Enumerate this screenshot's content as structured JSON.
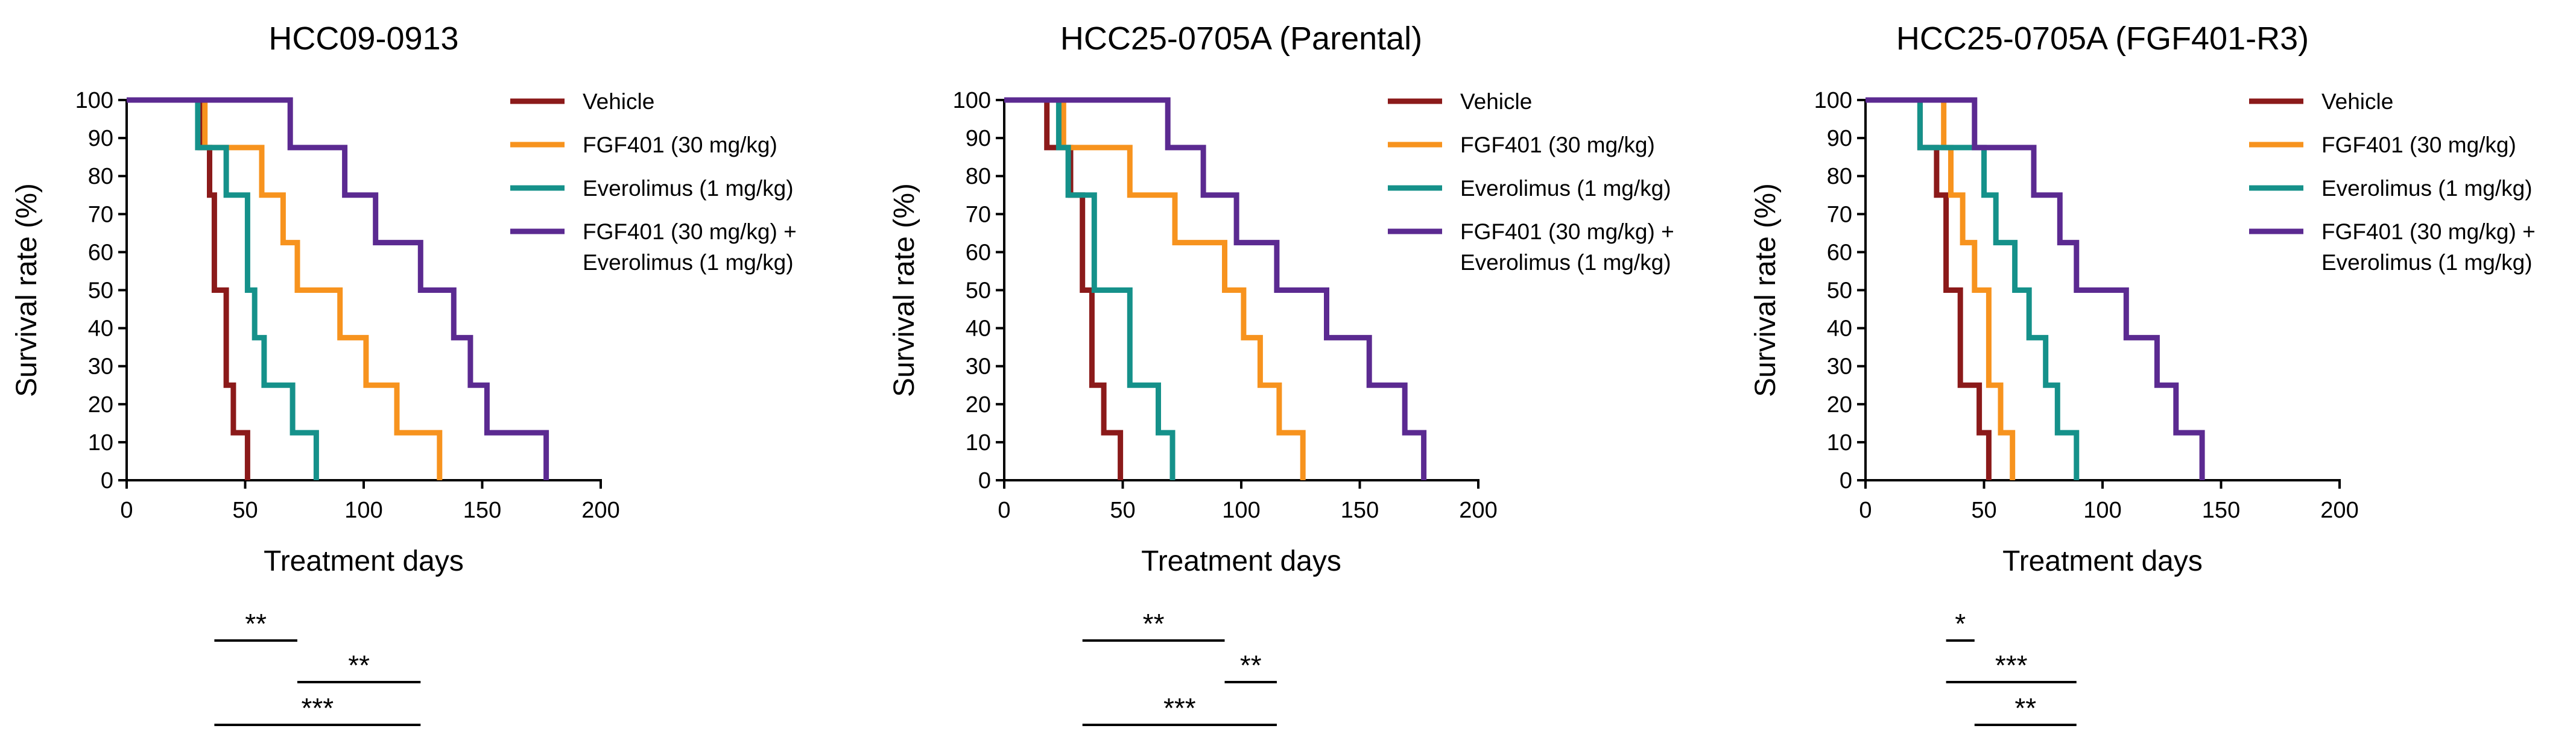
{
  "chart_data": [
    {
      "type": "line",
      "step": true,
      "title": "HCC09-0913",
      "xlabel": "Treatment days",
      "ylabel": "Survival rate (%)",
      "xlim": [
        0,
        200
      ],
      "ylim": [
        0,
        100
      ],
      "xticks": [
        "0",
        "50",
        "100",
        "150",
        "200"
      ],
      "yticks": [
        "0",
        "10",
        "20",
        "30",
        "40",
        "50",
        "60",
        "70",
        "80",
        "90",
        "100"
      ],
      "legend": [
        "Vehicle",
        "FGF401 (30 mg/kg)",
        "Everolimus (1 mg/kg)",
        "FGF401 (30 mg/kg) +\nEverolimus (1 mg/kg)"
      ],
      "series": [
        {
          "name": "Vehicle",
          "color": "#8b1a1a",
          "points": [
            [
              0,
              100
            ],
            [
              31,
              100
            ],
            [
              31,
              87.5
            ],
            [
              35,
              87.5
            ],
            [
              35,
              75
            ],
            [
              37,
              75
            ],
            [
              37,
              50
            ],
            [
              42,
              50
            ],
            [
              42,
              25
            ],
            [
              45,
              25
            ],
            [
              45,
              12.5
            ],
            [
              51,
              12.5
            ],
            [
              51,
              0
            ]
          ]
        },
        {
          "name": "FGF401 (30 mg/kg)",
          "color": "#f7931e",
          "points": [
            [
              0,
              100
            ],
            [
              33,
              100
            ],
            [
              33,
              87.5
            ],
            [
              57,
              87.5
            ],
            [
              57,
              75
            ],
            [
              66,
              75
            ],
            [
              66,
              62.5
            ],
            [
              72,
              62.5
            ],
            [
              72,
              50
            ],
            [
              90,
              50
            ],
            [
              90,
              37.5
            ],
            [
              101,
              37.5
            ],
            [
              101,
              25
            ],
            [
              114,
              25
            ],
            [
              114,
              12.5
            ],
            [
              132,
              12.5
            ],
            [
              132,
              0
            ]
          ]
        },
        {
          "name": "Everolimus (1 mg/kg)",
          "color": "#15918a",
          "points": [
            [
              0,
              100
            ],
            [
              30,
              100
            ],
            [
              30,
              87.5
            ],
            [
              42,
              87.5
            ],
            [
              42,
              75
            ],
            [
              51,
              75
            ],
            [
              51,
              50
            ],
            [
              54,
              50
            ],
            [
              54,
              37.5
            ],
            [
              58,
              37.5
            ],
            [
              58,
              25
            ],
            [
              70,
              25
            ],
            [
              70,
              12.5
            ],
            [
              80,
              12.5
            ],
            [
              80,
              0
            ]
          ]
        },
        {
          "name": "FGF401 (30 mg/kg) + Everolimus (1 mg/kg)",
          "color": "#5b2a91",
          "points": [
            [
              0,
              100
            ],
            [
              69,
              100
            ],
            [
              69,
              87.5
            ],
            [
              92,
              87.5
            ],
            [
              92,
              75
            ],
            [
              105,
              75
            ],
            [
              105,
              62.5
            ],
            [
              124,
              62.5
            ],
            [
              124,
              50
            ],
            [
              138,
              50
            ],
            [
              138,
              37.5
            ],
            [
              145,
              37.5
            ],
            [
              145,
              25
            ],
            [
              152,
              25
            ],
            [
              152,
              12.5
            ],
            [
              177,
              12.5
            ],
            [
              177,
              0
            ]
          ]
        }
      ],
      "significance": [
        {
          "label": "**",
          "from": "Vehicle",
          "to": "FGF401 (30 mg/kg)"
        },
        {
          "label": "**",
          "from": "FGF401 (30 mg/kg)",
          "to": "FGF401 (30 mg/kg) + Everolimus (1 mg/kg)"
        },
        {
          "label": "***",
          "from": "Vehicle",
          "to": "FGF401 (30 mg/kg) + Everolimus (1 mg/kg)"
        }
      ]
    },
    {
      "type": "line",
      "step": true,
      "title": "HCC25-0705A (Parental)",
      "xlabel": "Treatment days",
      "ylabel": "Survival rate (%)",
      "xlim": [
        0,
        200
      ],
      "ylim": [
        0,
        100
      ],
      "xticks": [
        "0",
        "50",
        "100",
        "150",
        "200"
      ],
      "yticks": [
        "0",
        "10",
        "20",
        "30",
        "40",
        "50",
        "60",
        "70",
        "80",
        "90",
        "100"
      ],
      "legend": [
        "Vehicle",
        "FGF401 (30 mg/kg)",
        "Everolimus (1 mg/kg)",
        "FGF401 (30 mg/kg) +\nEverolimus (1 mg/kg)"
      ],
      "series": [
        {
          "name": "Vehicle",
          "color": "#8b1a1a",
          "points": [
            [
              0,
              100
            ],
            [
              18,
              100
            ],
            [
              18,
              87.5
            ],
            [
              28,
              87.5
            ],
            [
              28,
              75
            ],
            [
              33,
              75
            ],
            [
              33,
              50
            ],
            [
              37,
              50
            ],
            [
              37,
              25
            ],
            [
              42,
              25
            ],
            [
              42,
              12.5
            ],
            [
              49,
              12.5
            ],
            [
              49,
              0
            ]
          ]
        },
        {
          "name": "FGF401 (30 mg/kg)",
          "color": "#f7931e",
          "points": [
            [
              0,
              100
            ],
            [
              25,
              100
            ],
            [
              25,
              87.5
            ],
            [
              53,
              87.5
            ],
            [
              53,
              75
            ],
            [
              72,
              75
            ],
            [
              72,
              62.5
            ],
            [
              93,
              62.5
            ],
            [
              93,
              50
            ],
            [
              101,
              50
            ],
            [
              101,
              37.5
            ],
            [
              108,
              37.5
            ],
            [
              108,
              25
            ],
            [
              116,
              25
            ],
            [
              116,
              12.5
            ],
            [
              126,
              12.5
            ],
            [
              126,
              0
            ]
          ]
        },
        {
          "name": "Everolimus (1 mg/kg)",
          "color": "#15918a",
          "points": [
            [
              0,
              100
            ],
            [
              23,
              100
            ],
            [
              23,
              87.5
            ],
            [
              27,
              87.5
            ],
            [
              27,
              75
            ],
            [
              38,
              75
            ],
            [
              38,
              50
            ],
            [
              53,
              50
            ],
            [
              53,
              25
            ],
            [
              65,
              25
            ],
            [
              65,
              12.5
            ],
            [
              71,
              12.5
            ],
            [
              71,
              0
            ]
          ]
        },
        {
          "name": "FGF401 (30 mg/kg) + Everolimus (1 mg/kg)",
          "color": "#5b2a91",
          "points": [
            [
              0,
              100
            ],
            [
              69,
              100
            ],
            [
              69,
              87.5
            ],
            [
              84,
              87.5
            ],
            [
              84,
              75
            ],
            [
              98,
              75
            ],
            [
              98,
              62.5
            ],
            [
              115,
              62.5
            ],
            [
              115,
              50
            ],
            [
              136,
              50
            ],
            [
              136,
              37.5
            ],
            [
              154,
              37.5
            ],
            [
              154,
              25
            ],
            [
              169,
              25
            ],
            [
              169,
              12.5
            ],
            [
              177,
              12.5
            ],
            [
              177,
              0
            ]
          ]
        }
      ],
      "significance": [
        {
          "label": "**",
          "from": "Vehicle",
          "to": "FGF401 (30 mg/kg)"
        },
        {
          "label": "**",
          "from": "FGF401 (30 mg/kg)",
          "to": "FGF401 (30 mg/kg) + Everolimus (1 mg/kg)"
        },
        {
          "label": "***",
          "from": "Vehicle",
          "to": "FGF401 (30 mg/kg) + Everolimus (1 mg/kg)"
        }
      ]
    },
    {
      "type": "line",
      "step": true,
      "title": "HCC25-0705A (FGF401-R3)",
      "xlabel": "Treatment days",
      "ylabel": "Survival rate (%)",
      "xlim": [
        0,
        200
      ],
      "ylim": [
        0,
        100
      ],
      "xticks": [
        "0",
        "50",
        "100",
        "150",
        "200"
      ],
      "yticks": [
        "0",
        "10",
        "20",
        "30",
        "40",
        "50",
        "60",
        "70",
        "80",
        "90",
        "100"
      ],
      "legend": [
        "Vehicle",
        "FGF401 (30 mg/kg)",
        "Everolimus (1 mg/kg)",
        "FGF401 (30 mg/kg) +\nEverolimus (1 mg/kg)"
      ],
      "series": [
        {
          "name": "Vehicle",
          "color": "#8b1a1a",
          "points": [
            [
              0,
              100
            ],
            [
              23,
              100
            ],
            [
              23,
              87.5
            ],
            [
              30,
              87.5
            ],
            [
              30,
              75
            ],
            [
              34,
              75
            ],
            [
              34,
              50
            ],
            [
              40,
              50
            ],
            [
              40,
              25
            ],
            [
              48,
              25
            ],
            [
              48,
              12.5
            ],
            [
              52,
              12.5
            ],
            [
              52,
              0
            ]
          ]
        },
        {
          "name": "FGF401 (30 mg/kg)",
          "color": "#f7931e",
          "points": [
            [
              0,
              100
            ],
            [
              33,
              100
            ],
            [
              33,
              87.5
            ],
            [
              36,
              87.5
            ],
            [
              36,
              75
            ],
            [
              41,
              75
            ],
            [
              41,
              62.5
            ],
            [
              46,
              62.5
            ],
            [
              46,
              50
            ],
            [
              52,
              50
            ],
            [
              52,
              25
            ],
            [
              57,
              25
            ],
            [
              57,
              12.5
            ],
            [
              62,
              12.5
            ],
            [
              62,
              0
            ]
          ]
        },
        {
          "name": "Everolimus (1 mg/kg)",
          "color": "#15918a",
          "points": [
            [
              0,
              100
            ],
            [
              23,
              100
            ],
            [
              23,
              87.5
            ],
            [
              50,
              87.5
            ],
            [
              50,
              75
            ],
            [
              55,
              75
            ],
            [
              55,
              62.5
            ],
            [
              63,
              62.5
            ],
            [
              63,
              50
            ],
            [
              69,
              50
            ],
            [
              69,
              37.5
            ],
            [
              76,
              37.5
            ],
            [
              76,
              25
            ],
            [
              81,
              25
            ],
            [
              81,
              12.5
            ],
            [
              89,
              12.5
            ],
            [
              89,
              0
            ]
          ]
        },
        {
          "name": "FGF401 (30 mg/kg) + Everolimus (1 mg/kg)",
          "color": "#5b2a91",
          "points": [
            [
              0,
              100
            ],
            [
              46,
              100
            ],
            [
              46,
              87.5
            ],
            [
              71,
              87.5
            ],
            [
              71,
              75
            ],
            [
              82,
              75
            ],
            [
              82,
              62.5
            ],
            [
              89,
              62.5
            ],
            [
              89,
              50
            ],
            [
              110,
              50
            ],
            [
              110,
              37.5
            ],
            [
              123,
              37.5
            ],
            [
              123,
              25
            ],
            [
              131,
              25
            ],
            [
              131,
              12.5
            ],
            [
              142,
              12.5
            ],
            [
              142,
              0
            ]
          ]
        }
      ],
      "significance": [
        {
          "label": "*",
          "from": "Vehicle",
          "to": "FGF401 (30 mg/kg)"
        },
        {
          "label": "***",
          "from": "Vehicle",
          "to": "FGF401 (30 mg/kg) + Everolimus (1 mg/kg)"
        },
        {
          "label": "**",
          "from": "FGF401 (30 mg/kg)",
          "to": "FGF401 (30 mg/kg) + Everolimus (1 mg/kg)"
        }
      ]
    }
  ]
}
